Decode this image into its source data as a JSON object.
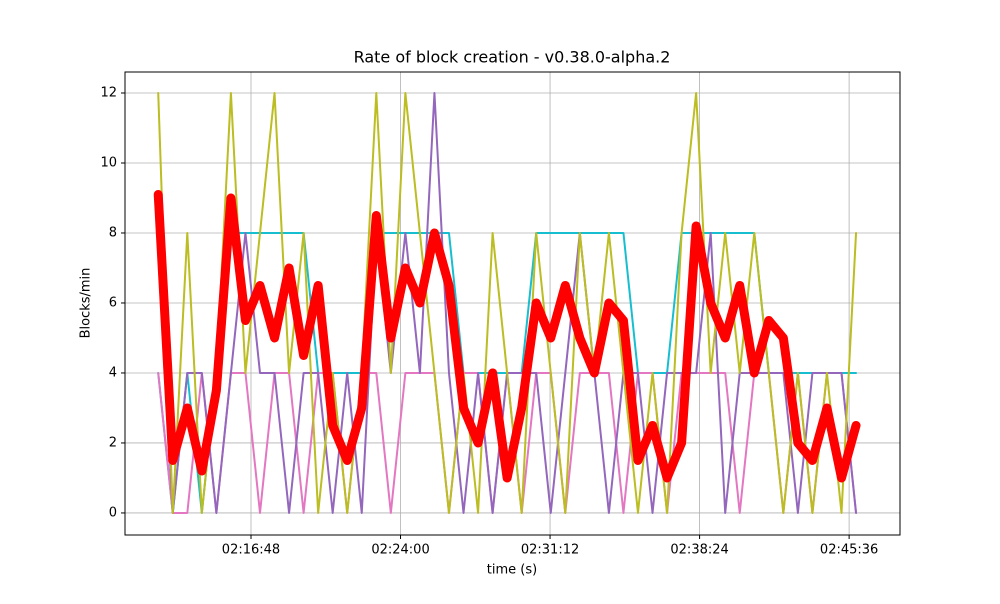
{
  "chart_data": {
    "type": "line",
    "title": "Rate of block creation  -  v0.38.0-alpha.2",
    "x_label": "time (s)",
    "y_label": "Blocks/min",
    "x": [
      7940,
      7982,
      8024,
      8066,
      8108,
      8150,
      8192,
      8234,
      8276,
      8318,
      8360,
      8402,
      8444,
      8486,
      8528,
      8570,
      8612,
      8654,
      8696,
      8738,
      8780,
      8822,
      8864,
      8906,
      8948,
      8990,
      9032,
      9074,
      9116,
      9158,
      9200,
      9242,
      9284,
      9326,
      9368,
      9410,
      9452,
      9494,
      9536,
      9578,
      9620,
      9662,
      9704,
      9746,
      9788,
      9830,
      9872,
      9914,
      9956
    ],
    "series": [
      {
        "color": "#17becf",
        "linewidth": 2,
        "values": [
          4,
          0,
          4,
          0,
          4,
          8,
          8,
          8,
          8,
          8,
          8,
          4,
          4,
          4,
          4,
          8,
          8,
          8,
          8,
          8,
          8,
          4,
          4,
          4,
          4,
          4,
          8,
          8,
          8,
          8,
          8,
          8,
          8,
          4,
          4,
          4,
          8,
          8,
          8,
          8,
          8,
          8,
          4,
          4,
          4,
          4,
          4,
          4,
          4
        ]
      },
      {
        "color": "#e377c2",
        "linewidth": 2,
        "values": [
          4,
          0,
          0,
          4,
          0,
          4,
          4,
          0,
          4,
          4,
          0,
          4,
          4,
          0,
          4,
          4,
          0,
          4,
          4,
          4,
          0,
          4,
          4,
          0,
          4,
          0,
          4,
          4,
          0,
          4,
          4,
          4,
          0,
          4,
          4,
          0,
          4,
          4,
          4,
          4,
          0,
          4,
          4,
          0,
          4,
          0,
          4,
          4,
          0
        ]
      },
      {
        "color": "#9467bd",
        "linewidth": 2,
        "values": [
          8,
          0,
          4,
          4,
          0,
          4,
          8,
          4,
          4,
          0,
          4,
          4,
          0,
          4,
          0,
          8,
          4,
          8,
          4,
          12,
          4,
          0,
          4,
          0,
          4,
          4,
          4,
          0,
          4,
          8,
          4,
          0,
          4,
          4,
          0,
          4,
          4,
          4,
          8,
          0,
          4,
          4,
          4,
          4,
          0,
          4,
          4,
          4,
          0
        ]
      },
      {
        "color": "#bcbd22",
        "linewidth": 2,
        "values": [
          12,
          0,
          8,
          0,
          4,
          12,
          4,
          8,
          12,
          4,
          8,
          0,
          4,
          0,
          4,
          12,
          4,
          12,
          8,
          4,
          0,
          4,
          0,
          8,
          4,
          0,
          8,
          4,
          0,
          8,
          4,
          8,
          4,
          0,
          4,
          0,
          8,
          12,
          4,
          8,
          4,
          8,
          4,
          0,
          4,
          0,
          4,
          0,
          8
        ]
      },
      {
        "color": "#ff0000",
        "linewidth": 9,
        "values": [
          9.1,
          1.5,
          3,
          1.2,
          3.5,
          9,
          5.5,
          6.5,
          5,
          7,
          4.5,
          6.5,
          2.5,
          1.5,
          3,
          8.5,
          5,
          7,
          6,
          8,
          6.5,
          3,
          2,
          4,
          1,
          3,
          6,
          5,
          6.5,
          5,
          4,
          6,
          5.5,
          1.5,
          2.5,
          1,
          2,
          8.2,
          6,
          5,
          6.5,
          4,
          5.5,
          5,
          2,
          1.5,
          3,
          1,
          2.5
        ]
      }
    ],
    "xlim": [
      7844,
      10083
    ],
    "xticks": [
      {
        "value": 8208,
        "label": "02:16:48"
      },
      {
        "value": 8640,
        "label": "02:24:00"
      },
      {
        "value": 9072,
        "label": "02:31:12"
      },
      {
        "value": 9504,
        "label": "02:38:24"
      },
      {
        "value": 9936,
        "label": "02:45:36"
      }
    ],
    "ylim": [
      -0.63,
      12.6
    ],
    "yticks": [
      0,
      2,
      4,
      6,
      8,
      10,
      12
    ],
    "grid": true
  }
}
